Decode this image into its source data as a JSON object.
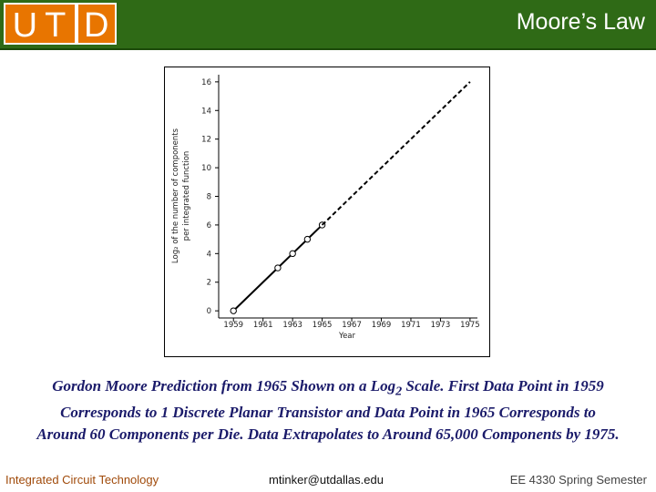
{
  "header": {
    "logo_left": "UT",
    "logo_right": "D",
    "title": "Moore’s Law"
  },
  "chart_data": {
    "type": "line",
    "x_label": "Year",
    "y_label": [
      "Log₂ of the number of components",
      "per integrated function"
    ],
    "series": [
      {
        "x": [
          1959,
          1962,
          1963,
          1964,
          1965
        ],
        "values": [
          0,
          3,
          4,
          5,
          6
        ],
        "color": "#000000",
        "markers": true,
        "dashed": false
      },
      {
        "x": [
          1965,
          1975
        ],
        "values": [
          6,
          16
        ],
        "color": "#000000",
        "markers": false,
        "dashed": true
      }
    ],
    "xlim": [
      1958,
      1975.5
    ],
    "xticks": [
      1959,
      1961,
      1963,
      1965,
      1967,
      1969,
      1971,
      1973,
      1975
    ],
    "ylim": [
      -0.5,
      16.5
    ],
    "yticks": [
      0,
      2,
      4,
      6,
      8,
      10,
      12,
      14,
      16
    ],
    "grid": false
  },
  "caption": {
    "before": "Gordon Moore Prediction from 1965 Shown on a Log",
    "sub": "2",
    "after": " Scale.  First Data Point in 1959 Corresponds to 1 Discrete Planar Transistor and Data Point in 1965 Corresponds to Around 60 Components per Die.  Data Extrapolates to Around 65,000 Components by 1975."
  },
  "footer": {
    "left": "Integrated Circuit Technology",
    "center": "mtinker@utdallas.edu",
    "right": "EE 4330 Spring Semester"
  }
}
